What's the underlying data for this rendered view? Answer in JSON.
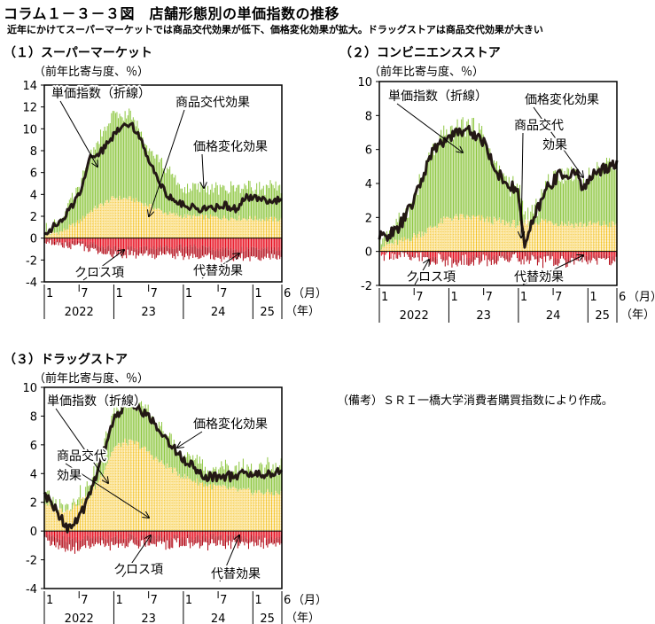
{
  "title": "コラム１－３－３図　店舗形態別の単価指数の推移",
  "subtitle": "近年にかけてスーパーマーケットでは商品交代効果が低下、価格変化効果が拡大。ドラッグストアは商品交代効果が大きい",
  "note": "（備考）ＳＲＩ一橋大学消費者購買指数により作成。",
  "colors": {
    "green": "#8dc63f",
    "yellow": "#fbe08a",
    "yellowGrid": "#f2b800",
    "red": "#e60012",
    "line": "#231815"
  },
  "chart_data": [
    {
      "type": "area",
      "title": "（１）スーパーマーケット",
      "ylabel": "（前年比寄与度、％）",
      "ylim": [
        -4,
        14
      ],
      "yticks": [
        "14",
        "12",
        "10",
        "8",
        "6",
        "4",
        "2",
        "0",
        "-2",
        "-4"
      ],
      "x_month_ticks": [
        "1",
        "7",
        "1",
        "7",
        "1",
        "7",
        "1",
        "6"
      ],
      "x_year_labels": [
        "2022",
        "23",
        "24",
        "25"
      ],
      "x_month_unit": "（月）",
      "x_year_unit": "（年）",
      "x_range": [
        "2022-01",
        "2025-06"
      ],
      "series": [
        {
          "name": "単価指数（折線）",
          "kind": "line",
          "knots": [
            [
              0,
              0.5
            ],
            [
              3,
              1.5
            ],
            [
              6,
              4
            ],
            [
              8,
              7.5
            ],
            [
              10,
              8
            ],
            [
              13,
              10.2
            ],
            [
              15,
              10.6
            ],
            [
              17,
              8.5
            ],
            [
              19,
              6.2
            ],
            [
              21,
              4
            ],
            [
              24,
              3
            ],
            [
              28,
              2.6
            ],
            [
              31,
              3
            ],
            [
              33,
              2.7
            ],
            [
              35,
              3.7
            ],
            [
              41,
              3.4
            ]
          ]
        },
        {
          "name": "商品交代効果",
          "kind": "stack",
          "knots": [
            [
              0,
              0.3
            ],
            [
              3,
              0.6
            ],
            [
              6,
              1.5
            ],
            [
              8,
              2.5
            ],
            [
              12,
              3.7
            ],
            [
              15,
              3.6
            ],
            [
              18,
              3
            ],
            [
              21,
              2.3
            ],
            [
              24,
              2
            ],
            [
              30,
              1.9
            ],
            [
              41,
              1.7
            ]
          ]
        },
        {
          "name": "価格変化効果",
          "kind": "stack",
          "knots": [
            [
              0,
              0.3
            ],
            [
              3,
              1.2
            ],
            [
              6,
              3
            ],
            [
              8,
              5.2
            ],
            [
              12,
              7.5
            ],
            [
              15,
              7.6
            ],
            [
              18,
              5.5
            ],
            [
              21,
              4
            ],
            [
              24,
              2.5
            ],
            [
              30,
              2.6
            ],
            [
              34,
              3
            ],
            [
              41,
              2.8
            ]
          ]
        },
        {
          "name": "クロス項",
          "kind": "neg",
          "knots": [
            [
              0,
              -0.1
            ],
            [
              6,
              -0.3
            ],
            [
              12,
              -0.9
            ],
            [
              18,
              -0.9
            ],
            [
              24,
              -0.7
            ],
            [
              30,
              -1
            ],
            [
              41,
              -1
            ]
          ]
        },
        {
          "name": "代替効果",
          "kind": "neg",
          "knots": [
            [
              0,
              -0.2
            ],
            [
              6,
              -0.4
            ],
            [
              12,
              -0.6
            ],
            [
              18,
              -0.6
            ],
            [
              24,
              -0.8
            ],
            [
              30,
              -0.8
            ],
            [
              41,
              -0.8
            ]
          ]
        }
      ],
      "annotations": [
        "単価指数（折線）",
        "商品交代効果",
        "価格変化効果",
        "クロス項",
        "代替効果"
      ]
    },
    {
      "type": "area",
      "title": "（２）コンビニエンスストア",
      "ylabel": "（前年比寄与度、％）",
      "ylim": [
        -2,
        10
      ],
      "yticks": [
        "10",
        "8",
        "6",
        "4",
        "2",
        "0",
        "-2"
      ],
      "x_month_ticks": [
        "1",
        "7",
        "1",
        "7",
        "1",
        "7",
        "1",
        "6"
      ],
      "x_year_labels": [
        "2022",
        "23",
        "24",
        "25"
      ],
      "x_month_unit": "（月）",
      "x_year_unit": "（年）",
      "x_range": [
        "2022-01",
        "2025-06"
      ],
      "series": [
        {
          "name": "単価指数（折線）",
          "kind": "line",
          "knots": [
            [
              0,
              0.8
            ],
            [
              3,
              1.2
            ],
            [
              6,
              3
            ],
            [
              9,
              5.8
            ],
            [
              12,
              6.8
            ],
            [
              15,
              7.2
            ],
            [
              18,
              6.5
            ],
            [
              20,
              4.8
            ],
            [
              22,
              4
            ],
            [
              24,
              3.5
            ],
            [
              25,
              0.3
            ],
            [
              27,
              2.2
            ],
            [
              29,
              3.8
            ],
            [
              31,
              4.5
            ],
            [
              34,
              4.6
            ],
            [
              35,
              3.8
            ],
            [
              38,
              4.8
            ],
            [
              41,
              5.2
            ]
          ]
        },
        {
          "name": "商品交代効果",
          "kind": "stack",
          "knots": [
            [
              0,
              0.3
            ],
            [
              4,
              0.6
            ],
            [
              8,
              1.2
            ],
            [
              12,
              2
            ],
            [
              16,
              2
            ],
            [
              20,
              1.8
            ],
            [
              24,
              1.6
            ],
            [
              28,
              1.8
            ],
            [
              34,
              1.6
            ],
            [
              41,
              1.6
            ]
          ]
        },
        {
          "name": "価格変化効果",
          "kind": "stack",
          "knots": [
            [
              0,
              0.5
            ],
            [
              3,
              0.9
            ],
            [
              6,
              2.2
            ],
            [
              9,
              4.5
            ],
            [
              12,
              5
            ],
            [
              15,
              5.4
            ],
            [
              18,
              4.9
            ],
            [
              20,
              3.2
            ],
            [
              22,
              2.5
            ],
            [
              24,
              2
            ],
            [
              25,
              0.2
            ],
            [
              27,
              0.8
            ],
            [
              29,
              2.2
            ],
            [
              31,
              3
            ],
            [
              34,
              3
            ],
            [
              35,
              2.3
            ],
            [
              38,
              3.3
            ],
            [
              41,
              3.6
            ]
          ]
        },
        {
          "name": "クロス項",
          "kind": "neg",
          "knots": [
            [
              0,
              -0.05
            ],
            [
              12,
              -0.3
            ],
            [
              24,
              -0.2
            ],
            [
              41,
              -0.3
            ]
          ]
        },
        {
          "name": "代替効果",
          "kind": "neg",
          "knots": [
            [
              0,
              -0.1
            ],
            [
              12,
              -0.3
            ],
            [
              24,
              -0.3
            ],
            [
              41,
              -0.3
            ]
          ]
        }
      ],
      "annotations": [
        "単価指数（折線）",
        "価格変化効果",
        "商品交代",
        "効果",
        "クロス項",
        "代替効果"
      ]
    },
    {
      "type": "area",
      "title": "（３）ドラッグストア",
      "ylabel": "（前年比寄与度、％）",
      "ylim": [
        -4,
        10
      ],
      "yticks": [
        "10",
        "8",
        "6",
        "4",
        "2",
        "0",
        "-2",
        "-4"
      ],
      "x_month_ticks": [
        "1",
        "7",
        "1",
        "7",
        "1",
        "7",
        "1",
        "6"
      ],
      "x_year_labels": [
        "2022",
        "23",
        "24",
        "25"
      ],
      "x_month_unit": "（月）",
      "x_year_unit": "（年）",
      "x_range": [
        "2022-01",
        "2025-06"
      ],
      "series": [
        {
          "name": "単価指数（折線）",
          "kind": "line",
          "knots": [
            [
              0,
              2.5
            ],
            [
              2,
              1.5
            ],
            [
              4,
              0.2
            ],
            [
              6,
              0.8
            ],
            [
              8,
              2.8
            ],
            [
              10,
              5.2
            ],
            [
              12,
              7.8
            ],
            [
              14,
              8.8
            ],
            [
              16,
              8.7
            ],
            [
              18,
              8
            ],
            [
              20,
              6.8
            ],
            [
              22,
              6
            ],
            [
              24,
              5
            ],
            [
              28,
              3.8
            ],
            [
              32,
              3.8
            ],
            [
              35,
              4
            ],
            [
              38,
              3.9
            ],
            [
              41,
              4.2
            ]
          ]
        },
        {
          "name": "商品交代効果",
          "kind": "stack",
          "knots": [
            [
              0,
              2
            ],
            [
              2,
              1.5
            ],
            [
              4,
              1.5
            ],
            [
              8,
              2.5
            ],
            [
              10,
              4
            ],
            [
              12,
              5.8
            ],
            [
              14,
              6.2
            ],
            [
              16,
              6.1
            ],
            [
              18,
              5.5
            ],
            [
              20,
              4.8
            ],
            [
              24,
              3.8
            ],
            [
              28,
              3.2
            ],
            [
              34,
              2.8
            ],
            [
              41,
              2.6
            ]
          ]
        },
        {
          "name": "価格変化効果",
          "kind": "stack",
          "knots": [
            [
              0,
              0.6
            ],
            [
              2,
              0.3
            ],
            [
              4,
              0.1
            ],
            [
              8,
              0.6
            ],
            [
              10,
              1.6
            ],
            [
              12,
              2.4
            ],
            [
              14,
              2.7
            ],
            [
              16,
              2.8
            ],
            [
              18,
              2.7
            ],
            [
              20,
              2.3
            ],
            [
              24,
              1.7
            ],
            [
              28,
              1.1
            ],
            [
              34,
              1.5
            ],
            [
              41,
              1.8
            ]
          ]
        },
        {
          "name": "クロス項",
          "kind": "neg",
          "knots": [
            [
              0,
              -0.2
            ],
            [
              4,
              -0.6
            ],
            [
              10,
              -0.4
            ],
            [
              20,
              -0.4
            ],
            [
              30,
              -0.4
            ],
            [
              41,
              -0.4
            ]
          ]
        },
        {
          "name": "代替効果",
          "kind": "neg",
          "knots": [
            [
              0,
              -0.3
            ],
            [
              4,
              -0.7
            ],
            [
              10,
              -0.5
            ],
            [
              20,
              -0.5
            ],
            [
              30,
              -0.5
            ],
            [
              41,
              -0.4
            ]
          ]
        }
      ],
      "annotations": [
        "単価指数（折線）",
        "価格変化効果",
        "商品交代",
        "効果",
        "クロス項",
        "代替効果"
      ]
    }
  ]
}
